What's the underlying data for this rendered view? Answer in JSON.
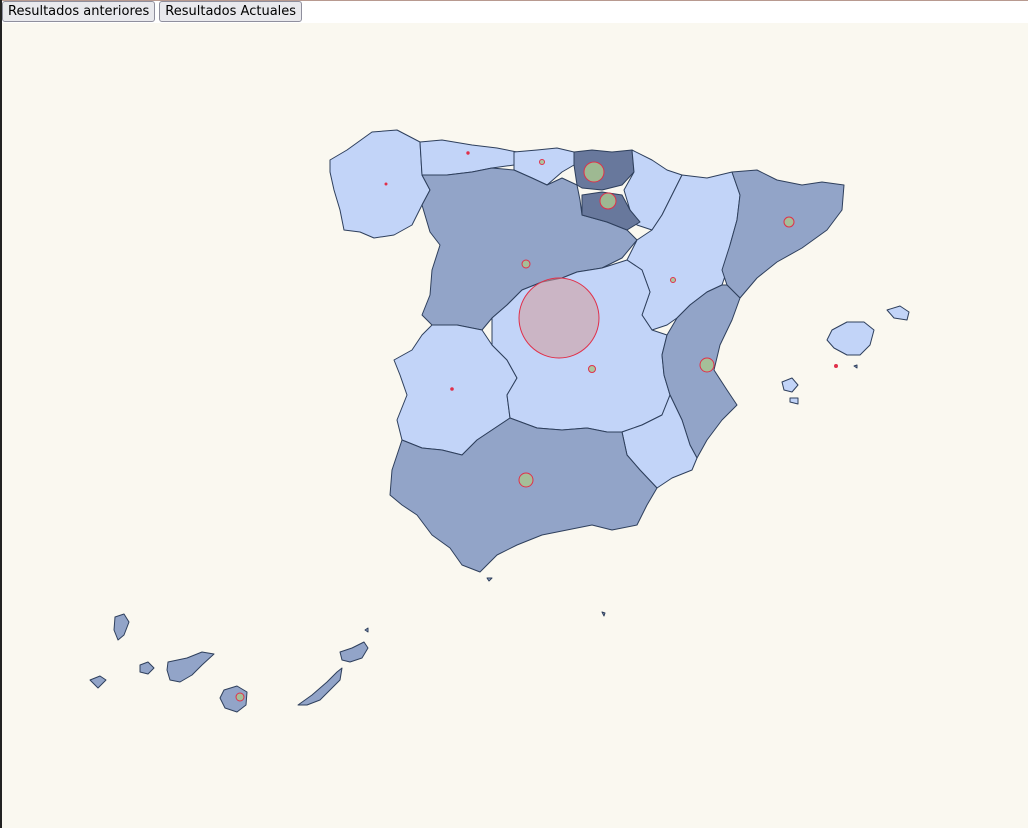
{
  "toolbar": {
    "previous_label": "Resultados anteriores",
    "current_label": "Resultados Actuales"
  },
  "colors": {
    "background": "#faf8f0",
    "light_region": "#c2d4f8",
    "medium_region": "#92a4c8",
    "dark_region": "#68789c",
    "border": "#2e3f5c",
    "marker_green": "#a8c490",
    "marker_red_fill": "#d49a9a",
    "marker_stroke": "#e0304a"
  }
}
